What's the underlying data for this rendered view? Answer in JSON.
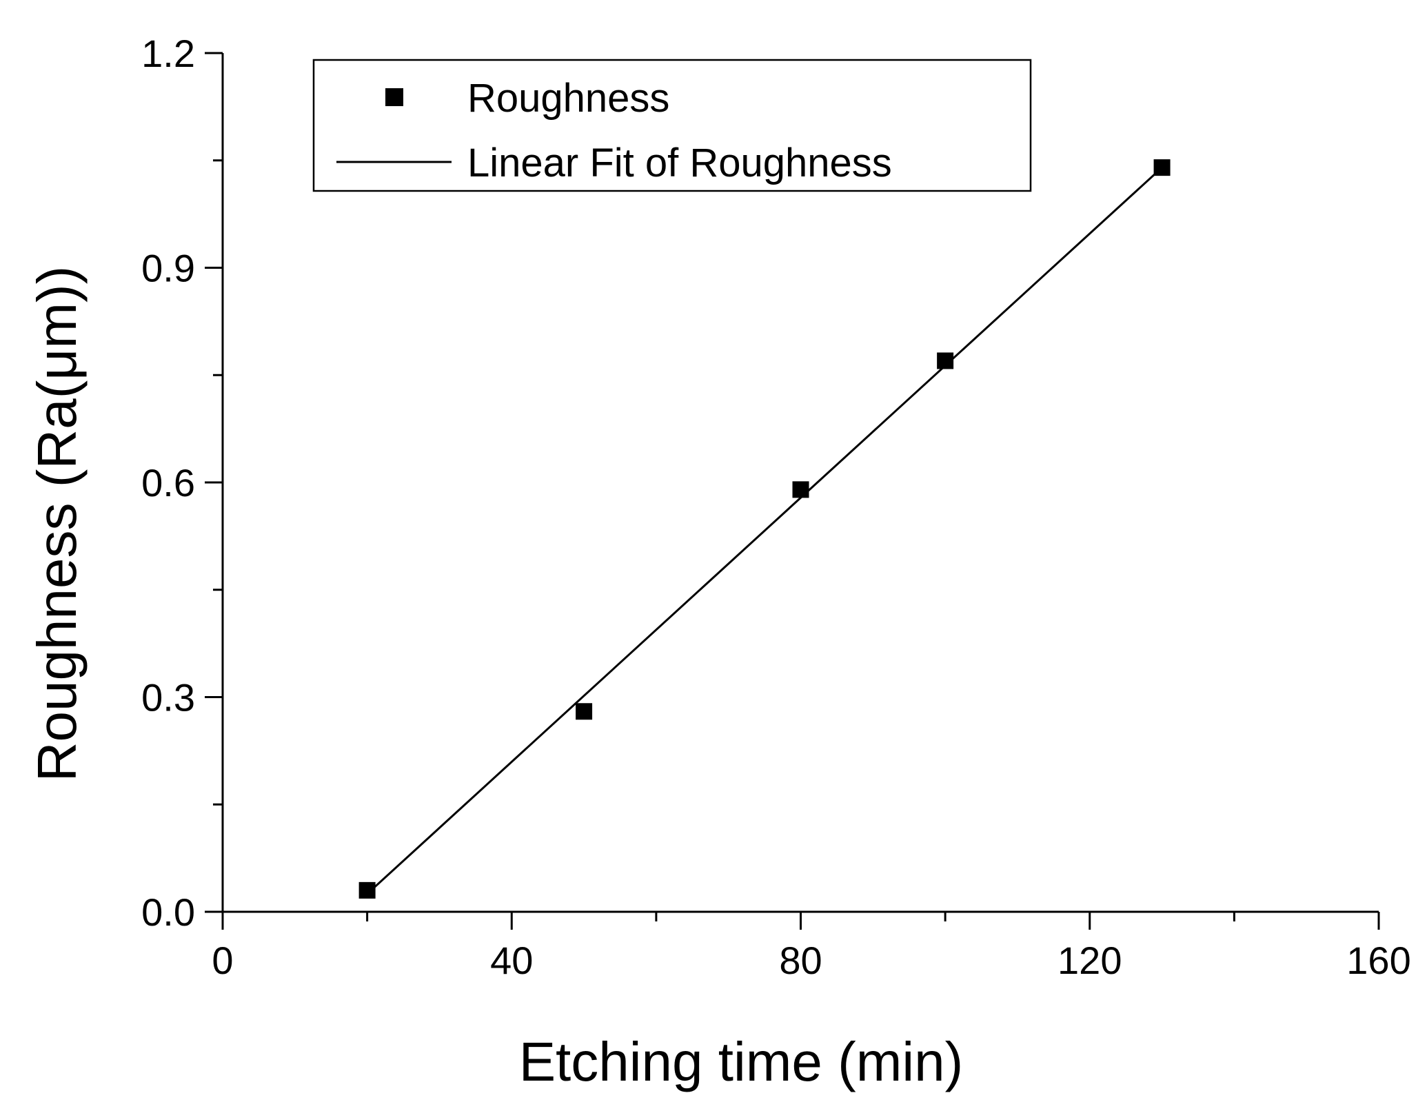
{
  "chart_data": {
    "type": "scatter",
    "title": "",
    "xlabel": "Etching time (min)",
    "ylabel": "Roughness (Ra(μm))",
    "xlim": [
      0,
      160
    ],
    "ylim": [
      0,
      1.2
    ],
    "x_ticks": [
      "0",
      "40",
      "80",
      "120",
      "160"
    ],
    "y_ticks": [
      "0.0",
      "0.3",
      "0.6",
      "0.9",
      "1.2"
    ],
    "grid": false,
    "legend_position": "top-left",
    "series": [
      {
        "name": "Roughness",
        "type": "scatter",
        "marker": "square",
        "color": "#000000",
        "x": [
          20,
          50,
          80,
          100,
          130
        ],
        "y": [
          0.03,
          0.28,
          0.59,
          0.77,
          1.04
        ]
      },
      {
        "name": "Linear Fit of Roughness",
        "type": "line",
        "color": "#000000",
        "x": [
          20,
          130
        ],
        "y": [
          0.025,
          1.04
        ]
      }
    ]
  }
}
